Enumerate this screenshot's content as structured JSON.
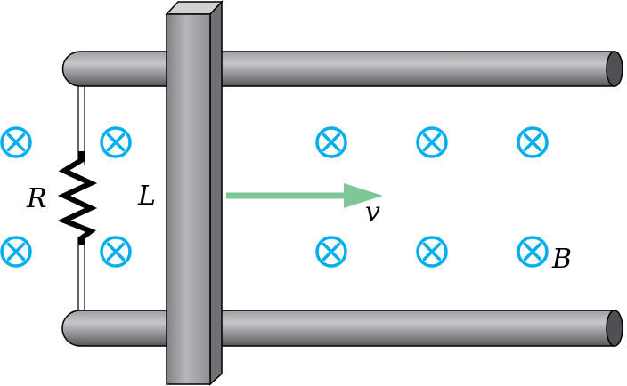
{
  "labels": {
    "resistor": "R",
    "rod_length": "L",
    "velocity": "v",
    "field": "B"
  },
  "colors": {
    "rail_fill_light": "#a9abae",
    "rail_fill_dark": "#5d5f62",
    "rail_stroke": "#000000",
    "rod_front": "#9c9ea1",
    "rod_side": "#6e7073",
    "rod_top": "#c9cbce",
    "field_symbol": "#00aeef",
    "velocity_arrow": "#7cc795",
    "wire": "#000000",
    "background": "#ffffff"
  },
  "field_symbols": {
    "icon": "field-into-page-icon",
    "count": 10
  }
}
